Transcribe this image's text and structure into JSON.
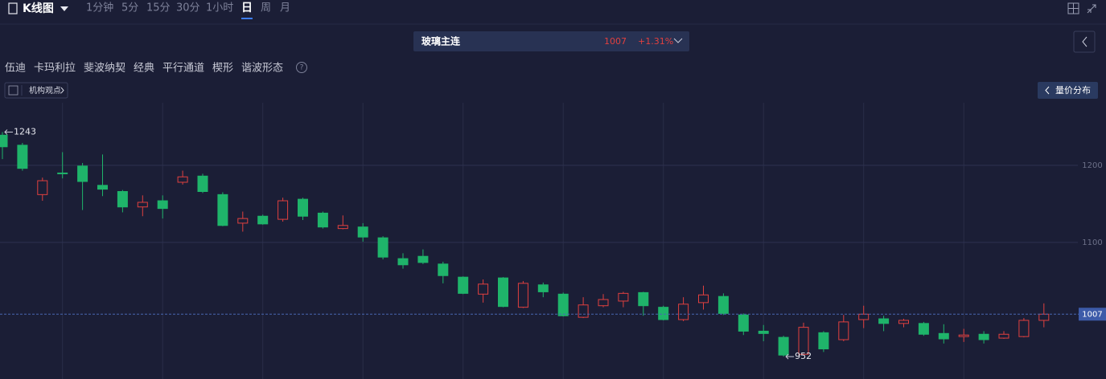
{
  "toolbar": {
    "title": "K线图",
    "periods": [
      "1分钟",
      "5分",
      "15分",
      "30分",
      "1小时",
      "日",
      "周",
      "月"
    ],
    "active": 5
  },
  "instrument": {
    "name": "玻璃主连",
    "price": 1007,
    "change": "+1.31%"
  },
  "tools": [
    "伍迪",
    "卡玛利拉",
    "斐波纳契",
    "经典",
    "平行通道",
    "楔形",
    "谐波形态"
  ],
  "view_button": "机构观点",
  "volume_button": "量价分布",
  "chart_data": {
    "type": "candlestick",
    "categories": [
      null,
      null,
      null,
      null,
      null,
      null,
      null,
      null,
      null,
      null,
      null,
      null,
      null,
      null,
      null,
      null,
      null,
      null,
      null,
      null,
      null,
      null,
      null,
      null,
      null,
      null,
      null,
      null,
      null,
      null,
      null,
      null,
      null,
      null,
      null,
      null,
      null,
      null,
      null,
      null,
      null,
      null,
      null,
      null,
      null,
      null,
      null,
      null,
      null,
      null,
      null,
      null,
      null
    ],
    "open": [
      1239,
      1226,
      1162,
      1190,
      1199,
      1174,
      1166,
      1146,
      1154,
      1178,
      1186,
      1162,
      1125,
      1134,
      1130,
      1156,
      1138,
      1118,
      1120,
      1106,
      1079,
      1082,
      1072,
      1055,
      1033,
      1054,
      1016,
      1045,
      1033,
      1003,
      1018,
      1024,
      1035,
      1016,
      1000,
      1022,
      1030,
      1006,
      985,
      977,
      955,
      983,
      974,
      1000,
      1001,
      995,
      995,
      982,
      978,
      981,
      976,
      978,
      999
    ],
    "high": [
      1243,
      1229,
      1184,
      1217,
      1203,
      1214,
      1168,
      1161,
      1161,
      1193,
      1189,
      1165,
      1140,
      1136,
      1158,
      1158,
      1140,
      1135,
      1125,
      1108,
      1086,
      1091,
      1075,
      1056,
      1052,
      1055,
      1050,
      1048,
      1035,
      1029,
      1033,
      1036,
      1036,
      1018,
      1029,
      1044,
      1034,
      1008,
      993,
      979,
      996,
      985,
      1006,
      1018,
      1005,
      1001,
      997,
      994,
      988,
      985,
      985,
      1002,
      1021
    ],
    "low": [
      1208,
      1193,
      1154,
      1183,
      1142,
      1160,
      1139,
      1134,
      1131,
      1175,
      1164,
      1121,
      1114,
      1123,
      1127,
      1129,
      1118,
      1117,
      1101,
      1078,
      1066,
      1072,
      1047,
      1033,
      1022,
      1016,
      1015,
      1029,
      1004,
      1002,
      1016,
      1016,
      1005,
      999,
      998,
      1013,
      1006,
      980,
      972,
      952,
      954,
      958,
      972,
      989,
      985,
      990,
      979,
      969,
      971,
      969,
      975,
      977,
      990
    ],
    "close": [
      1224,
      1196,
      1180,
      1189,
      1179,
      1169,
      1146,
      1152,
      1144,
      1185,
      1166,
      1122,
      1131,
      1124,
      1154,
      1134,
      1120,
      1122,
      1107,
      1081,
      1071,
      1074,
      1057,
      1034,
      1046,
      1017,
      1047,
      1036,
      1005,
      1019,
      1026,
      1034,
      1018,
      1000,
      1020,
      1032,
      1008,
      985,
      982,
      954,
      990,
      962,
      997,
      1007,
      995,
      999,
      981,
      975,
      980,
      974,
      981,
      999,
      1007
    ],
    "up_color": "#e0403f",
    "down_color": "#1fb46a",
    "ylim": [
      923,
      1281
    ],
    "yticks": [
      1100,
      1200
    ],
    "grid": true,
    "last_price": 1007,
    "annotations": [
      {
        "index": 0,
        "value": 1243
      },
      {
        "index": 39,
        "value": 952
      }
    ]
  }
}
